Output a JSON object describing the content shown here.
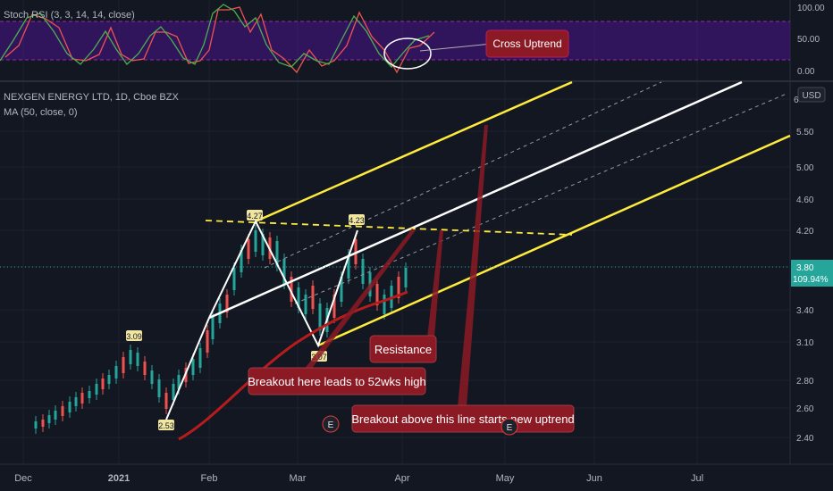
{
  "symbol": {
    "title": "NEXGEN ENERGY LTD, 1D, Cboe BZX",
    "indicator": "MA (50, close, 0)",
    "currency": "USD"
  },
  "colors": {
    "background": "#131722",
    "grid": "#1e222d",
    "up": "#26a69a",
    "down": "#ef5350",
    "channel_outer": "#ffeb3b",
    "channel_mid": "#ffffff",
    "ma": "#b71c1c",
    "stoch_k": "#4caf50",
    "stoch_d": "#ef5350",
    "stoch_band": "#4a148c",
    "callout_bg": "#8b1a24",
    "price_tag": "#26a69a"
  },
  "stoch": {
    "title": "Stoch RSI (3, 3, 14, 14, close)",
    "levels": [
      "100.00",
      "50.00",
      "0.00"
    ],
    "callout": "Cross Uptrend"
  },
  "chart_data": {
    "type": "candlestick",
    "x_ticks": [
      "Dec",
      "2021",
      "Feb",
      "Mar",
      "Apr",
      "May",
      "Jun",
      "Jul"
    ],
    "y_ticks": [
      "6",
      "5.50",
      "5.00",
      "4.60",
      "4.20",
      "3.80",
      "3.40",
      "3.10",
      "2.80",
      "2.60",
      "2.40"
    ],
    "last_price": "3.80",
    "last_change": "109.94%",
    "pivot_labels": [
      "3.09",
      "2.53",
      "4.27",
      "3.07",
      "4.23"
    ],
    "annotations": {
      "resistance": "Resistance",
      "breakout_52wk": "Breakout here leads to 52wks high",
      "breakout_uptrend": "Breakout above this line starts new uptrend",
      "earnings": "E"
    }
  }
}
